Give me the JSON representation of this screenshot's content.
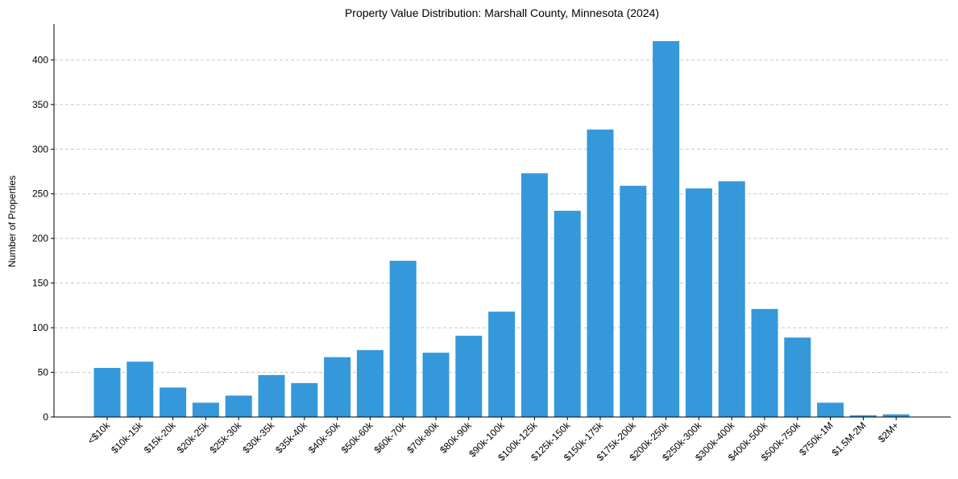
{
  "chart_data": {
    "type": "bar",
    "title": "Property Value Distribution: Marshall County, Minnesota (2024)",
    "xlabel": "",
    "ylabel": "Number of Properties",
    "ylim": [
      0,
      440
    ],
    "yticks": [
      0,
      50,
      100,
      150,
      200,
      250,
      300,
      350,
      400
    ],
    "grid": "y-dashed",
    "bar_color": "#3498db",
    "categories": [
      "<$10k",
      "$10k-15k",
      "$15k-20k",
      "$20k-25k",
      "$25k-30k",
      "$30k-35k",
      "$35k-40k",
      "$40k-50k",
      "$50k-60k",
      "$60k-70k",
      "$70k-80k",
      "$80k-90k",
      "$90k-100k",
      "$100k-125k",
      "$125k-150k",
      "$150k-175k",
      "$175k-200k",
      "$200k-250k",
      "$250k-300k",
      "$300k-400k",
      "$400k-500k",
      "$500k-750k",
      "$750k-1M",
      "$1.5M-2M",
      "$2M+"
    ],
    "values": [
      55,
      62,
      33,
      16,
      24,
      47,
      38,
      67,
      75,
      175,
      72,
      91,
      118,
      273,
      231,
      322,
      259,
      421,
      256,
      264,
      121,
      89,
      16,
      2,
      3
    ]
  }
}
